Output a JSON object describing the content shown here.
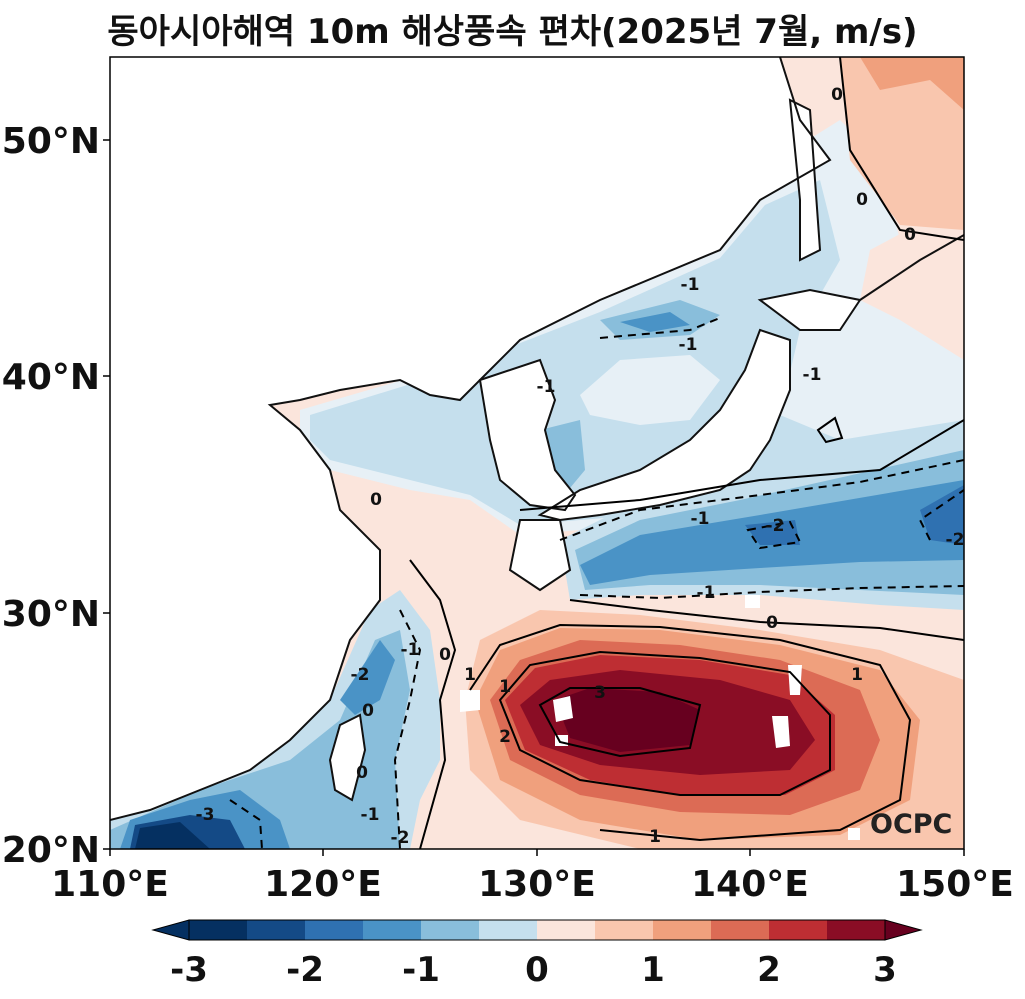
{
  "title": "동아시아해역 10m 해상풍속 편차(2025년 7월, m/s)",
  "watermark": "OCPC",
  "axes": {
    "lat_ticks": [
      "50°N",
      "40°N",
      "30°N",
      "20°N"
    ],
    "lon_ticks": [
      "110°E",
      "120°E",
      "130°E",
      "140°E",
      "150°E"
    ],
    "lon_range": [
      110,
      150
    ],
    "lat_range": [
      20,
      53.5
    ]
  },
  "contour_labels": [
    "0",
    "0",
    "0",
    "0",
    "0",
    "0",
    "0",
    "-1",
    "-1",
    "-1",
    "-1",
    "-1",
    "-1",
    "-1",
    "-2",
    "-2",
    "-2",
    "-2",
    "-3",
    "1",
    "1",
    "1",
    "2",
    "3",
    "-1",
    "0",
    "1"
  ],
  "colorbar": {
    "ticks": [
      "-3",
      "-2",
      "-1",
      "0",
      "1",
      "2",
      "3"
    ],
    "levels": [
      -3,
      -2.5,
      -2,
      -1.5,
      -1,
      -0.5,
      0,
      0.5,
      1,
      1.5,
      2,
      2.5,
      3
    ],
    "colors": [
      "#053061",
      "#144a86",
      "#2f71b1",
      "#4a93c6",
      "#89bedb",
      "#c5dfed",
      "#e7f0f6",
      "#fbe5dc",
      "#f9c6ae",
      "#f0a07d",
      "#dc6b55",
      "#be2e33",
      "#8a0d25",
      "#67001f"
    ],
    "land_color": "#ffffff"
  },
  "chart_data": {
    "type": "heatmap",
    "variable": "10m sea surface wind speed anomaly",
    "units": "m/s",
    "title": "동아시아해역 10m 해상풍속 편차(2025년 7월, m/s)",
    "xlim": [
      110,
      150
    ],
    "ylim": [
      20,
      53.5
    ],
    "color_range": [
      -3,
      3
    ],
    "features": [
      {
        "region": "south of Japan",
        "lon": 135,
        "lat": 25.5,
        "value": 3.2
      },
      {
        "region": "Pacific east of Japan",
        "lon": 148.5,
        "lat": 33.5,
        "value": -2.3
      },
      {
        "region": "south of Honshu",
        "lon": 141,
        "lat": 33,
        "value": -2
      },
      {
        "region": "near Guangdong coast",
        "lon": 113,
        "lat": 20.8,
        "value": -3
      },
      {
        "region": "Taiwan Strait",
        "lon": 121.3,
        "lat": 26.5,
        "value": -2
      },
      {
        "region": "northwest Pacific",
        "lon": 149,
        "lat": 51.5,
        "value": 1.3
      },
      {
        "region": "East Sea",
        "lon": 134,
        "lat": 39.5,
        "value": -0.7
      },
      {
        "region": "East China Sea",
        "lon": 126.5,
        "lat": 31.5,
        "value": 0.3
      }
    ]
  }
}
